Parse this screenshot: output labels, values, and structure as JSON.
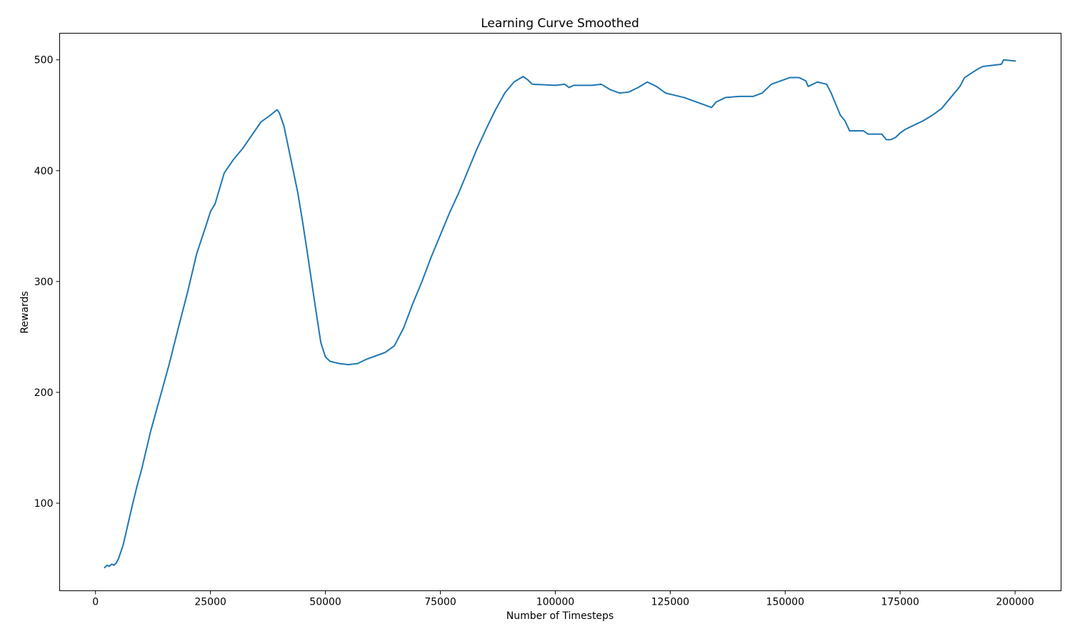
{
  "chart_data": {
    "type": "line",
    "title": "Learning Curve Smoothed",
    "xlabel": "Number of Timesteps",
    "ylabel": "Rewards",
    "xlim": [
      -7800,
      210000
    ],
    "ylim": [
      21,
      524
    ],
    "xticks": [
      0,
      25000,
      50000,
      75000,
      100000,
      125000,
      150000,
      175000,
      200000
    ],
    "xtick_labels": [
      "0",
      "25000",
      "50000",
      "75000",
      "100000",
      "125000",
      "150000",
      "175000",
      "200000"
    ],
    "yticks": [
      100,
      200,
      300,
      400,
      500
    ],
    "ytick_labels": [
      "100",
      "200",
      "300",
      "400",
      "500"
    ],
    "grid": false,
    "line_color": "#1f77b4",
    "series": [
      {
        "x": [
          2000,
          2500,
          3000,
          3500,
          4000,
          4500,
          5000,
          6000,
          7000,
          8000,
          9000,
          10000,
          12000,
          14000,
          16000,
          18000,
          20000,
          22000,
          24000,
          25000,
          26000,
          28000,
          30000,
          32000,
          34000,
          36000,
          38000,
          39500,
          40000,
          41000,
          42000,
          43000,
          44000,
          45000,
          46000,
          47000,
          48000,
          49000,
          50000,
          51000,
          52000,
          53000,
          55000,
          57000,
          59000,
          61000,
          63000,
          65000,
          67000,
          69000,
          71000,
          73000,
          75000,
          77000,
          79000,
          81000,
          83000,
          85000,
          87000,
          89000,
          91000,
          93000,
          94000,
          95000,
          100000,
          102000,
          103000,
          104000,
          108000,
          110000,
          112000,
          114000,
          116000,
          118000,
          120000,
          122000,
          124000,
          126000,
          128000,
          130000,
          132000,
          134000,
          135000,
          137000,
          140000,
          143000,
          145000,
          147000,
          149000,
          151000,
          153000,
          154500,
          155000,
          157000,
          159000,
          160000,
          161000,
          162000,
          163000,
          164000,
          167000,
          168000,
          171000,
          172000,
          173000,
          174000,
          175000,
          176000,
          180000,
          182000,
          184000,
          186000,
          188000,
          189000,
          192000,
          193000,
          197000,
          197500,
          200000
        ],
        "y": [
          42,
          44,
          43,
          45,
          44,
          46,
          50,
          62,
          80,
          98,
          115,
          130,
          165,
          195,
          225,
          258,
          290,
          325,
          350,
          363,
          370,
          398,
          410,
          420,
          432,
          444,
          450,
          455,
          452,
          440,
          420,
          400,
          380,
          355,
          328,
          300,
          272,
          245,
          232,
          228,
          227,
          226,
          225,
          226,
          230,
          233,
          236,
          242,
          258,
          280,
          300,
          322,
          342,
          362,
          380,
          400,
          420,
          438,
          455,
          470,
          480,
          485,
          482,
          478,
          477,
          478,
          475,
          477,
          477,
          478,
          473,
          470,
          471,
          475,
          480,
          476,
          470,
          468,
          466,
          463,
          460,
          457,
          462,
          466,
          467,
          467,
          470,
          478,
          481,
          484,
          484,
          481,
          476,
          480,
          478,
          470,
          460,
          450,
          445,
          436,
          436,
          433,
          433,
          428,
          428,
          430,
          434,
          437,
          445,
          450,
          456,
          466,
          476,
          484,
          492,
          494,
          496,
          500,
          499
        ]
      }
    ]
  }
}
